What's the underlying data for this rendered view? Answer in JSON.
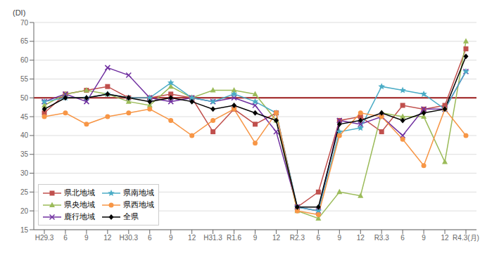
{
  "chart_data": {
    "type": "line",
    "y_label": "(DI)",
    "categories": [
      "H29.3",
      "6",
      "9",
      "12",
      "H30.3",
      "6",
      "9",
      "12",
      "H31.3",
      "R1.6",
      "9",
      "12",
      "R2.3",
      "6",
      "9",
      "12",
      "R3.3",
      "6",
      "9",
      "12",
      "R4.3(月)"
    ],
    "series": [
      {
        "name": "県北地域",
        "color": "#c0504d",
        "marker": "square",
        "values": [
          46,
          51,
          52,
          53,
          50,
          50,
          51,
          50,
          41,
          47,
          43,
          46,
          21,
          25,
          44,
          45,
          41,
          48,
          47,
          48,
          63
        ]
      },
      {
        "name": "県央地域",
        "color": "#9bbb59",
        "marker": "triangle",
        "values": [
          48,
          51,
          52,
          51,
          49,
          48,
          53,
          50,
          52,
          52,
          51,
          44,
          20,
          18,
          25,
          24,
          46,
          45,
          45,
          33,
          65
        ]
      },
      {
        "name": "鹿行地域",
        "color": "#7030a0",
        "marker": "x",
        "values": [
          49,
          51,
          49,
          58,
          56,
          50,
          49,
          50,
          49,
          50,
          48,
          41,
          21,
          20,
          44,
          43,
          45,
          40,
          47,
          47,
          57
        ]
      },
      {
        "name": "県南地域",
        "color": "#4bacc6",
        "marker": "star",
        "values": [
          49,
          50,
          50,
          51,
          50,
          50,
          54,
          50,
          49,
          51,
          49,
          46,
          21,
          20,
          41,
          42,
          53,
          52,
          51,
          47,
          57
        ]
      },
      {
        "name": "県西地域",
        "color": "#f79646",
        "marker": "circle",
        "values": [
          45,
          46,
          43,
          45,
          46,
          47,
          44,
          40,
          44,
          47,
          38,
          46,
          20,
          19,
          40,
          46,
          45,
          39,
          32,
          47,
          40
        ]
      },
      {
        "name": "全県",
        "color": "#000000",
        "marker": "diamond",
        "values": [
          47,
          50,
          50,
          51,
          50,
          49,
          50,
          49,
          47,
          48,
          46,
          44,
          21,
          21,
          43,
          44,
          46,
          44,
          46,
          47,
          61
        ]
      }
    ],
    "ylim": [
      15,
      70
    ],
    "yticks": [
      15,
      20,
      25,
      30,
      35,
      40,
      45,
      50,
      55,
      60,
      65,
      70
    ],
    "reference_lines": [
      {
        "y": 50,
        "color": "#9b1b1b"
      }
    ],
    "grid": true,
    "legend": "lower left"
  }
}
